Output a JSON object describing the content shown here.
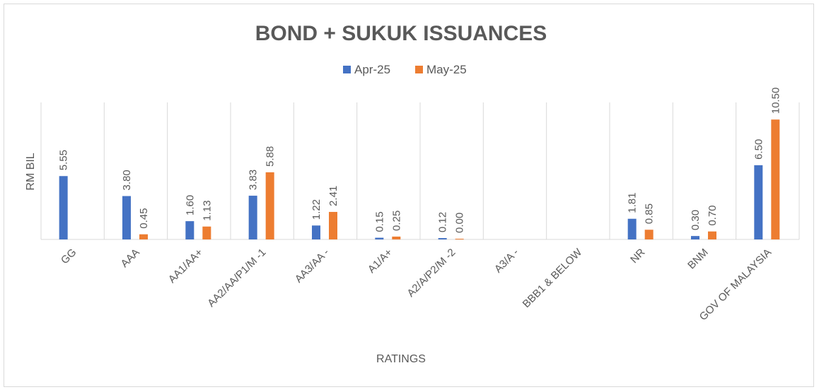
{
  "chart_data": {
    "type": "bar",
    "title": "BOND + SUKUK ISSUANCES",
    "xlabel": "RATINGS",
    "ylabel": "RM BIL",
    "categories": [
      "GG",
      "AAA",
      "AA1/AA+",
      "AA2/AA/P1/M -1",
      "AA3/AA -",
      "A1/A+",
      "A2/A/P2/M -2",
      "A3/A -",
      "BBB1 & BELOW",
      "NR",
      "BNM",
      "GOV OF MALAYSIA"
    ],
    "series": [
      {
        "name": "Apr-25",
        "color": "#4472c4",
        "values": [
          5.55,
          3.8,
          1.6,
          3.83,
          1.22,
          0.15,
          0.12,
          null,
          null,
          1.81,
          0.3,
          6.5
        ],
        "labels": [
          "5.55",
          "3.80",
          "1.60",
          "3.83",
          "1.22",
          "0.15",
          "0.12",
          "",
          "",
          "1.81",
          "0.30",
          "6.50"
        ]
      },
      {
        "name": "May-25",
        "color": "#ed7d31",
        "values": [
          null,
          0.45,
          1.13,
          5.88,
          2.41,
          0.25,
          0.0,
          null,
          null,
          0.85,
          0.7,
          10.5
        ],
        "labels": [
          "",
          "0.45",
          "1.13",
          "5.88",
          "2.41",
          "0.25",
          "0.00",
          "",
          "",
          "0.85",
          "0.70",
          "10.50"
        ]
      }
    ],
    "ylim": [
      0,
      12
    ],
    "grid": "vertical-category-lines",
    "legend_position": "top"
  }
}
